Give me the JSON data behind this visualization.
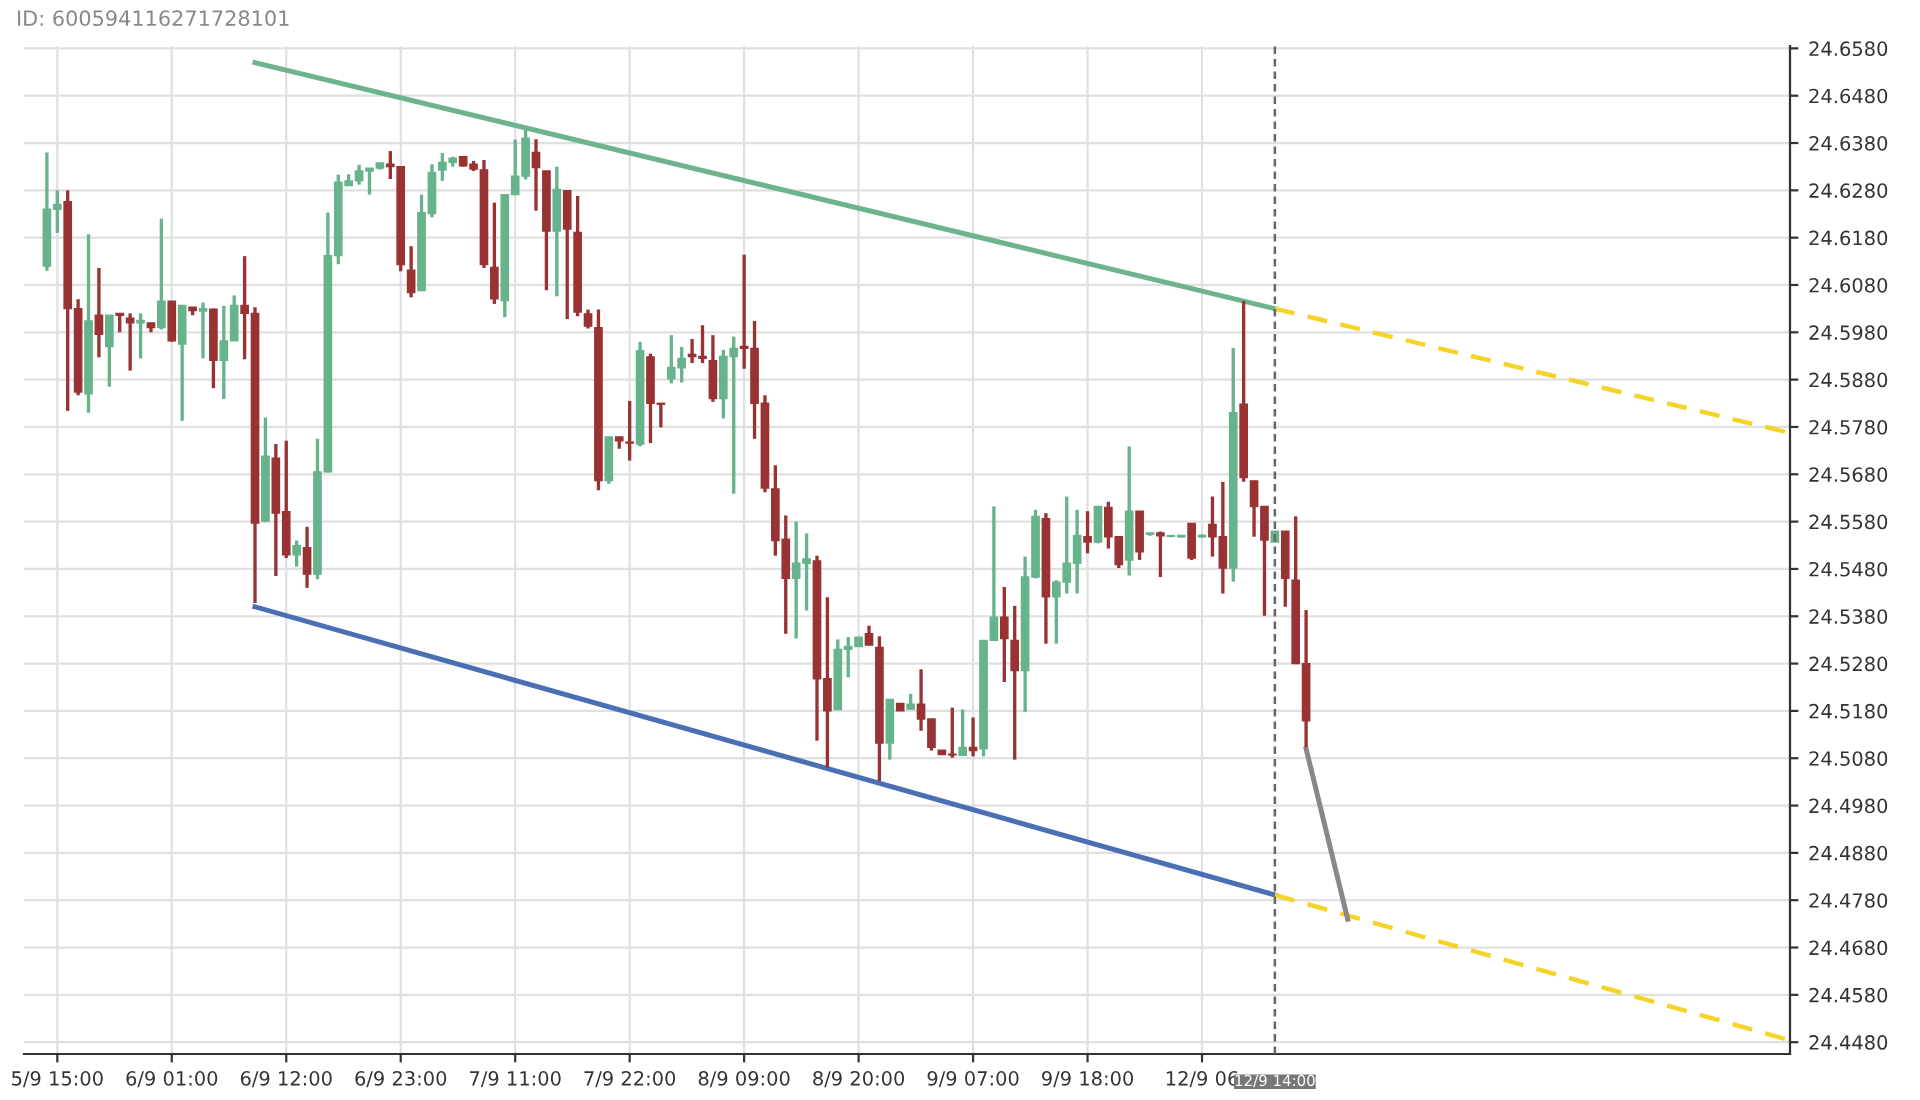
{
  "chart_data": {
    "type": "candlestick",
    "annotations": [
      "ID: 600594116271728101"
    ],
    "categories": [
      null,
      "5/9 15:00",
      null,
      null,
      null,
      null,
      null,
      null,
      null,
      null,
      null,
      null,
      "6/9 01:00",
      null,
      null,
      null,
      null,
      null,
      null,
      null,
      null,
      null,
      null,
      "6/9 12:00",
      null,
      null,
      null,
      null,
      null,
      null,
      null,
      null,
      null,
      null,
      "6/9 23:00",
      null,
      null,
      null,
      null,
      null,
      null,
      null,
      null,
      null,
      null,
      "7/9 11:00",
      null,
      null,
      null,
      null,
      null,
      null,
      null,
      null,
      null,
      null,
      "7/9 22:00",
      null,
      null,
      null,
      null,
      null,
      null,
      null,
      null,
      null,
      null,
      "8/9 09:00",
      null,
      null,
      null,
      null,
      null,
      null,
      null,
      null,
      null,
      null,
      "8/9 20:00",
      null,
      null,
      null,
      null,
      null,
      null,
      null,
      null,
      null,
      null,
      "9/9 07:00",
      null,
      null,
      null,
      null,
      null,
      null,
      null,
      null,
      null,
      null,
      "9/9 18:00",
      null,
      null,
      null,
      null,
      null,
      null,
      null,
      null,
      null,
      null,
      "12/9 06",
      null,
      null,
      null,
      null,
      null,
      null,
      "12/9 14:00",
      null,
      null,
      null,
      null,
      null,
      null,
      null,
      null,
      null,
      null,
      null,
      null,
      null,
      null,
      null,
      null,
      null,
      null,
      null,
      null,
      null,
      null,
      null,
      null,
      null,
      null,
      null,
      null,
      null,
      null,
      null,
      null,
      null,
      null,
      null,
      null,
      null,
      null,
      null,
      null,
      null,
      null,
      null,
      null,
      null,
      null,
      null,
      null,
      null
    ],
    "ohlc": [
      [
        24.612,
        24.636,
        24.611,
        24.624
      ],
      [
        24.624,
        24.628,
        24.619,
        24.625
      ],
      [
        24.6256,
        24.628,
        24.5814,
        24.603
      ],
      [
        24.603,
        24.605,
        24.5847,
        24.5854
      ],
      [
        24.585,
        24.6187,
        24.581,
        24.6004
      ],
      [
        24.6016,
        24.6116,
        24.5927,
        24.5976
      ],
      [
        24.595,
        24.6016,
        24.5865,
        24.6016
      ],
      [
        24.602,
        24.602,
        24.598,
        24.6016
      ],
      [
        24.601,
        24.602,
        24.5899,
        24.6
      ],
      [
        24.6,
        24.602,
        24.5925,
        24.6005
      ],
      [
        24.6,
        24.6,
        24.598,
        24.599
      ],
      [
        24.599,
        24.622,
        24.5986,
        24.6046
      ],
      [
        24.6046,
        24.6046,
        24.596,
        24.5962
      ],
      [
        24.5955,
        24.6037,
        24.5793,
        24.6037
      ],
      [
        24.6033,
        24.6033,
        24.6016,
        24.6026
      ],
      [
        24.6025,
        24.6043,
        24.5925,
        24.603
      ],
      [
        24.6029,
        24.603,
        24.5862,
        24.5921
      ],
      [
        24.5921,
        24.6036,
        24.5839,
        24.5962
      ],
      [
        24.5962,
        24.6058,
        24.5962,
        24.6037
      ],
      [
        24.6037,
        24.6141,
        24.5923,
        24.602
      ],
      [
        24.602,
        24.6033,
        24.5408,
        24.5577
      ],
      [
        24.5581,
        24.58,
        24.5579,
        24.5718
      ],
      [
        24.5714,
        24.5744,
        24.5465,
        24.5598
      ],
      [
        24.5601,
        24.5751,
        24.5503,
        24.551
      ],
      [
        24.551,
        24.554,
        24.5485,
        24.5529
      ],
      [
        24.5525,
        24.5569,
        24.544,
        24.5469
      ],
      [
        24.5469,
        24.5755,
        24.5458,
        24.5685
      ],
      [
        24.5685,
        24.6233,
        24.5684,
        24.6142
      ],
      [
        24.6142,
        24.6313,
        24.6124,
        24.6297
      ],
      [
        24.629,
        24.6314,
        24.6289,
        24.63
      ],
      [
        24.63,
        24.6334,
        24.6292,
        24.6321
      ],
      [
        24.6321,
        24.6327,
        24.6271,
        24.6327
      ],
      [
        24.6327,
        24.6338,
        24.6324,
        24.6338
      ],
      [
        24.6335,
        24.6363,
        24.6304,
        24.633
      ],
      [
        24.633,
        24.633,
        24.6109,
        24.6123
      ],
      [
        24.6111,
        24.6162,
        24.6054,
        24.6064
      ],
      [
        24.6068,
        24.6271,
        24.6068,
        24.6233
      ],
      [
        24.6231,
        24.6335,
        24.6223,
        24.6318
      ],
      [
        24.6323,
        24.6359,
        24.63,
        24.6339
      ],
      [
        24.6339,
        24.6351,
        24.633,
        24.6348
      ],
      [
        24.6351,
        24.6351,
        24.633,
        24.6332
      ],
      [
        24.6335,
        24.6342,
        24.6321,
        24.6325
      ],
      [
        24.6323,
        24.6344,
        24.6116,
        24.6123
      ],
      [
        24.6117,
        24.6254,
        24.604,
        24.6051
      ],
      [
        24.6047,
        24.6271,
        24.6012,
        24.6271
      ],
      [
        24.6271,
        24.6387,
        24.6271,
        24.631
      ],
      [
        24.631,
        24.6415,
        24.6303,
        24.639
      ],
      [
        24.636,
        24.6388,
        24.6237,
        24.6328
      ],
      [
        24.6321,
        24.6321,
        24.6069,
        24.6194
      ],
      [
        24.6194,
        24.633,
        24.6056,
        24.6282
      ],
      [
        24.6279,
        24.6279,
        24.6008,
        24.6198
      ],
      [
        24.6191,
        24.6268,
        24.6014,
        24.6023
      ],
      [
        24.6019,
        24.6028,
        24.5988,
        24.5993
      ],
      [
        24.599,
        24.6028,
        24.5646,
        24.5667
      ],
      [
        24.5667,
        24.5759,
        24.566,
        24.5759
      ],
      [
        24.5759,
        24.5759,
        24.5734,
        24.5751
      ],
      [
        24.5748,
        24.5835,
        24.5709,
        24.5746
      ],
      [
        24.5744,
        24.596,
        24.5739,
        24.5941
      ],
      [
        24.5928,
        24.5935,
        24.5746,
        24.583
      ],
      [
        24.583,
        24.583,
        24.5779,
        24.5828
      ],
      [
        24.5882,
        24.5974,
        24.5872,
        24.5906
      ],
      [
        24.5905,
        24.5949,
        24.5874,
        24.5925
      ],
      [
        24.5933,
        24.5966,
        24.5915,
        24.5929
      ],
      [
        24.5929,
        24.5995,
        24.5915,
        24.5925
      ],
      [
        24.592,
        24.5974,
        24.5833,
        24.584
      ],
      [
        24.584,
        24.5943,
        24.5798,
        24.5929
      ],
      [
        24.5929,
        24.5971,
        24.5639,
        24.5946
      ],
      [
        24.595,
        24.6144,
        24.5903,
        24.5946
      ],
      [
        24.5946,
        24.6004,
        24.5755,
        24.583
      ],
      [
        24.583,
        24.5847,
        24.5642,
        24.5651
      ],
      [
        24.5649,
        24.5699,
        24.5508,
        24.554
      ],
      [
        24.5543,
        24.5593,
        24.5343,
        24.546
      ],
      [
        24.546,
        24.558,
        24.5333,
        24.5492
      ],
      [
        24.5492,
        24.5555,
        24.5392,
        24.5501
      ],
      [
        24.5497,
        24.5508,
        24.5117,
        24.5248
      ],
      [
        24.5248,
        24.542,
        24.506,
        24.518
      ],
      [
        24.5183,
        24.5331,
        24.5183,
        24.531
      ],
      [
        24.531,
        24.5336,
        24.5251,
        24.5316
      ],
      [
        24.5316,
        24.5336,
        24.5315,
        24.5336
      ],
      [
        24.5343,
        24.536,
        24.5319,
        24.5319
      ],
      [
        24.5314,
        24.5338,
        24.5032,
        24.5112
      ],
      [
        24.5112,
        24.5204,
        24.5077,
        24.5204
      ],
      [
        24.5196,
        24.5196,
        24.518,
        24.518
      ],
      [
        24.5184,
        24.5216,
        24.5183,
        24.5194
      ],
      [
        24.5194,
        24.5268,
        24.5138,
        24.5163
      ],
      [
        24.5163,
        24.5163,
        24.5096,
        24.5103
      ],
      [
        24.5097,
        24.5097,
        24.5088,
        24.5088
      ],
      [
        24.5088,
        24.5187,
        24.5081,
        24.5087
      ],
      [
        24.5086,
        24.5183,
        24.5086,
        24.5103
      ],
      [
        24.5103,
        24.5166,
        24.5084,
        24.5096
      ],
      [
        24.51,
        24.5329,
        24.5084,
        24.5329
      ],
      [
        24.5329,
        24.5612,
        24.5329,
        24.5378
      ],
      [
        24.5378,
        24.5442,
        24.5241,
        24.5333
      ],
      [
        24.5329,
        24.5402,
        24.5077,
        24.5265
      ],
      [
        24.5265,
        24.5506,
        24.5178,
        24.5463
      ],
      [
        24.5463,
        24.5605,
        24.546,
        24.5591
      ],
      [
        24.5586,
        24.5598,
        24.5322,
        24.5421
      ],
      [
        24.5421,
        24.5456,
        24.5322,
        24.5452
      ],
      [
        24.5452,
        24.5633,
        24.5428,
        24.5492
      ],
      [
        24.5492,
        24.5605,
        24.5428,
        24.5551
      ],
      [
        24.5548,
        24.5602,
        24.5513,
        24.5537
      ],
      [
        24.5537,
        24.5612,
        24.5534,
        24.5612
      ],
      [
        24.561,
        24.5622,
        24.5523,
        24.5548
      ],
      [
        24.5548,
        24.5548,
        24.5482,
        24.5489
      ],
      [
        24.5499,
        24.5739,
        24.5466,
        24.5602
      ],
      [
        24.5602,
        24.5602,
        24.5499,
        24.5516
      ],
      [
        24.5553,
        24.5556,
        24.555,
        24.5556
      ],
      [
        24.5556,
        24.5559,
        24.5463,
        24.555
      ],
      [
        24.5549,
        24.5552,
        24.5547,
        24.555
      ],
      [
        24.5548,
        24.5552,
        24.5546,
        24.5551
      ],
      [
        24.5576,
        24.5576,
        24.5499,
        24.5503
      ],
      [
        24.5548,
        24.5553,
        24.5546,
        24.5551
      ],
      [
        24.5574,
        24.5633,
        24.5506,
        24.5548
      ],
      [
        24.5548,
        24.5664,
        24.5428,
        24.5482
      ],
      [
        24.5482,
        24.5947,
        24.5453,
        24.581
      ],
      [
        24.5828,
        24.6046,
        24.5664,
        24.5673
      ],
      [
        24.5666,
        24.5666,
        24.5548,
        24.5612
      ],
      [
        24.5612,
        24.5612,
        24.5381,
        24.5541
      ],
      [
        24.5537,
        24.556,
        24.5537,
        24.556
      ],
      [
        24.556,
        24.556,
        24.54,
        24.546
      ],
      [
        24.5456,
        24.5591,
        24.528,
        24.528
      ],
      [
        24.528,
        24.5393,
        24.5103,
        24.5159
      ],
      null,
      null,
      null,
      null,
      null,
      null,
      null,
      null,
      null,
      null,
      null,
      null,
      null,
      null,
      null,
      null,
      null,
      null,
      null,
      null,
      null,
      null,
      null,
      null,
      null,
      null,
      null,
      null,
      null,
      null,
      null,
      null,
      null,
      null,
      null,
      null,
      null,
      null,
      null,
      null,
      null,
      null,
      null,
      null,
      null,
      null
    ],
    "series": [
      {
        "type": "line",
        "color": "#6db38e",
        "line_style": "solid",
        "values": [
          null,
          null,
          null,
          null,
          null,
          null,
          null,
          null,
          null,
          null,
          null,
          null,
          null,
          null,
          null,
          null,
          null,
          null,
          null,
          null,
          24.655,
          null,
          null,
          null,
          null,
          null,
          null,
          null,
          null,
          null,
          null,
          null,
          null,
          null,
          null,
          null,
          null,
          null,
          null,
          null,
          null,
          null,
          null,
          null,
          null,
          null,
          null,
          null,
          null,
          null,
          null,
          null,
          null,
          null,
          null,
          null,
          null,
          null,
          null,
          null,
          null,
          null,
          null,
          null,
          null,
          null,
          null,
          null,
          null,
          null,
          null,
          null,
          null,
          null,
          null,
          null,
          null,
          null,
          null,
          null,
          null,
          null,
          null,
          null,
          null,
          null,
          null,
          null,
          null,
          null,
          null,
          null,
          null,
          null,
          null,
          null,
          null,
          null,
          null,
          null,
          null,
          null,
          null,
          null,
          null,
          null,
          null,
          null,
          null,
          null,
          null,
          null,
          null,
          null,
          null,
          null,
          null,
          null,
          24.603,
          null,
          null,
          null,
          null,
          null,
          null,
          null,
          null,
          null,
          null,
          null,
          null,
          null,
          null,
          null,
          null,
          null,
          null,
          null,
          null,
          null,
          null,
          null,
          null,
          null,
          null,
          null,
          null,
          null,
          null,
          null,
          null,
          null,
          null,
          null,
          null,
          null,
          null,
          null,
          null,
          null,
          null,
          null,
          null,
          null,
          null,
          null,
          null,
          null
        ]
      },
      {
        "type": "line",
        "color": "#4a6fb5",
        "line_style": "solid",
        "values": [
          null,
          null,
          null,
          null,
          null,
          null,
          null,
          null,
          null,
          null,
          null,
          null,
          null,
          null,
          null,
          null,
          null,
          null,
          null,
          null,
          24.54,
          null,
          null,
          null,
          null,
          null,
          null,
          null,
          null,
          null,
          null,
          null,
          null,
          null,
          null,
          null,
          null,
          null,
          null,
          null,
          null,
          null,
          null,
          null,
          null,
          null,
          null,
          null,
          null,
          null,
          null,
          null,
          null,
          null,
          null,
          null,
          null,
          null,
          null,
          null,
          null,
          null,
          null,
          null,
          null,
          null,
          null,
          null,
          null,
          null,
          null,
          null,
          null,
          null,
          null,
          null,
          null,
          null,
          null,
          null,
          null,
          null,
          null,
          null,
          null,
          null,
          null,
          null,
          null,
          null,
          null,
          null,
          null,
          null,
          null,
          null,
          null,
          null,
          null,
          null,
          null,
          null,
          null,
          null,
          null,
          null,
          null,
          null,
          null,
          null,
          null,
          null,
          null,
          null,
          null,
          null,
          null,
          null,
          24.4791,
          null,
          null,
          null,
          null,
          null,
          null,
          null,
          null,
          null,
          null,
          null,
          null,
          null,
          null,
          null,
          null,
          null,
          null,
          null,
          null,
          null,
          null,
          null,
          null,
          null,
          null,
          null,
          null,
          null,
          null,
          null,
          null,
          null,
          null,
          null,
          null,
          null,
          null,
          null,
          null,
          null,
          null,
          null,
          null,
          null,
          null,
          null,
          null,
          null
        ]
      },
      {
        "type": "line",
        "color": "#f5d327",
        "line_style": "dashed",
        "values": [
          null,
          null,
          null,
          null,
          null,
          null,
          null,
          null,
          null,
          null,
          null,
          null,
          null,
          null,
          null,
          null,
          null,
          null,
          null,
          null,
          null,
          null,
          null,
          null,
          null,
          null,
          null,
          null,
          null,
          null,
          null,
          null,
          null,
          null,
          null,
          null,
          null,
          null,
          null,
          null,
          null,
          null,
          null,
          null,
          null,
          null,
          null,
          null,
          null,
          null,
          null,
          null,
          null,
          null,
          null,
          null,
          null,
          null,
          null,
          null,
          null,
          null,
          null,
          null,
          null,
          null,
          null,
          null,
          null,
          null,
          null,
          null,
          null,
          null,
          null,
          null,
          null,
          null,
          null,
          null,
          null,
          null,
          null,
          null,
          null,
          null,
          null,
          null,
          null,
          null,
          null,
          null,
          null,
          null,
          null,
          null,
          null,
          null,
          null,
          null,
          null,
          null,
          null,
          null,
          null,
          null,
          null,
          null,
          null,
          null,
          null,
          null,
          null,
          null,
          null,
          null,
          null,
          null,
          24.603,
          null,
          null,
          null,
          null,
          null,
          null,
          null,
          null,
          null,
          null,
          null,
          null,
          null,
          null,
          null,
          null,
          null,
          null,
          null,
          null,
          null,
          null,
          null,
          null,
          null,
          null,
          null,
          null,
          null,
          null,
          null,
          null,
          null,
          null,
          null,
          null,
          null,
          null,
          null,
          null,
          null,
          null,
          null,
          null,
          null,
          null,
          null,
          null,
          24.577
        ]
      },
      {
        "type": "line",
        "color": "#f5d327",
        "line_style": "dashed",
        "values": [
          null,
          null,
          null,
          null,
          null,
          null,
          null,
          null,
          null,
          null,
          null,
          null,
          null,
          null,
          null,
          null,
          null,
          null,
          null,
          null,
          null,
          null,
          null,
          null,
          null,
          null,
          null,
          null,
          null,
          null,
          null,
          null,
          null,
          null,
          null,
          null,
          null,
          null,
          null,
          null,
          null,
          null,
          null,
          null,
          null,
          null,
          null,
          null,
          null,
          null,
          null,
          null,
          null,
          null,
          null,
          null,
          null,
          null,
          null,
          null,
          null,
          null,
          null,
          null,
          null,
          null,
          null,
          null,
          null,
          null,
          null,
          null,
          null,
          null,
          null,
          null,
          null,
          null,
          null,
          null,
          null,
          null,
          null,
          null,
          null,
          null,
          null,
          null,
          null,
          null,
          null,
          null,
          null,
          null,
          null,
          null,
          null,
          null,
          null,
          null,
          null,
          null,
          null,
          null,
          null,
          null,
          null,
          null,
          null,
          null,
          null,
          null,
          null,
          null,
          null,
          null,
          null,
          null,
          24.4791,
          null,
          null,
          null,
          null,
          null,
          null,
          null,
          null,
          null,
          null,
          null,
          null,
          null,
          null,
          null,
          null,
          null,
          null,
          null,
          null,
          null,
          null,
          null,
          null,
          null,
          null,
          null,
          null,
          null,
          null,
          null,
          null,
          null,
          null,
          null,
          null,
          null,
          null,
          null,
          null,
          null,
          null,
          null,
          null,
          null,
          null,
          null,
          null,
          24.4487
        ]
      },
      {
        "type": "line",
        "color": "#888888",
        "line_style": "solid",
        "values": [
          null,
          null,
          null,
          null,
          null,
          null,
          null,
          null,
          null,
          null,
          null,
          null,
          null,
          null,
          null,
          null,
          null,
          null,
          null,
          null,
          null,
          null,
          null,
          null,
          null,
          null,
          null,
          null,
          null,
          null,
          null,
          null,
          null,
          null,
          null,
          null,
          null,
          null,
          null,
          null,
          null,
          null,
          null,
          null,
          null,
          null,
          null,
          null,
          null,
          null,
          null,
          null,
          null,
          null,
          null,
          null,
          null,
          null,
          null,
          null,
          null,
          null,
          null,
          null,
          null,
          null,
          null,
          null,
          null,
          null,
          null,
          null,
          null,
          null,
          null,
          null,
          null,
          null,
          null,
          null,
          null,
          null,
          null,
          null,
          null,
          null,
          null,
          null,
          null,
          null,
          null,
          null,
          null,
          null,
          null,
          null,
          null,
          null,
          null,
          null,
          null,
          null,
          null,
          null,
          null,
          null,
          null,
          null,
          null,
          null,
          null,
          null,
          null,
          null,
          null,
          null,
          null,
          null,
          null,
          null,
          null,
          24.51,
          null,
          null,
          null,
          24.474,
          null,
          null,
          null,
          null,
          null,
          null,
          null,
          null,
          null,
          null,
          null,
          null,
          null,
          null,
          null,
          null,
          null,
          null,
          null,
          null,
          null,
          null,
          null,
          null,
          null,
          null,
          null,
          null,
          null,
          null,
          null,
          null,
          null,
          null,
          null,
          null,
          null,
          null,
          null,
          null,
          null,
          null
        ]
      }
    ],
    "ref_lines": [
      {
        "axis": "x",
        "value": "12/9 14:00",
        "color": "#666666",
        "line_style": "dashed"
      }
    ],
    "ylim": [
      24.4455,
      24.6585
    ],
    "yticks": [
      {
        "value": 24.448,
        "label": "24.4480"
      },
      {
        "value": 24.458,
        "label": "24.4580"
      },
      {
        "value": 24.468,
        "label": "24.4680"
      },
      {
        "value": 24.478,
        "label": "24.4780"
      },
      {
        "value": 24.488,
        "label": "24.4880"
      },
      {
        "value": 24.498,
        "label": "24.4980"
      },
      {
        "value": 24.508,
        "label": "24.5080"
      },
      {
        "value": 24.518,
        "label": "24.5180"
      },
      {
        "value": 24.528,
        "label": "24.5280"
      },
      {
        "value": 24.538,
        "label": "24.5380"
      },
      {
        "value": 24.548,
        "label": "24.5480"
      },
      {
        "value": 24.558,
        "label": "24.5580"
      },
      {
        "value": 24.568,
        "label": "24.5680"
      },
      {
        "value": 24.578,
        "label": "24.5780"
      },
      {
        "value": 24.588,
        "label": "24.5880"
      },
      {
        "value": 24.598,
        "label": "24.5980"
      },
      {
        "value": 24.608,
        "label": "24.6080"
      },
      {
        "value": 24.618,
        "label": "24.6180"
      },
      {
        "value": 24.628,
        "label": "24.6280"
      },
      {
        "value": 24.638,
        "label": "24.6380"
      },
      {
        "value": 24.648,
        "label": "24.6480"
      },
      {
        "value": 24.658,
        "label": "24.6580"
      }
    ],
    "grid": true,
    "legend": false
  }
}
